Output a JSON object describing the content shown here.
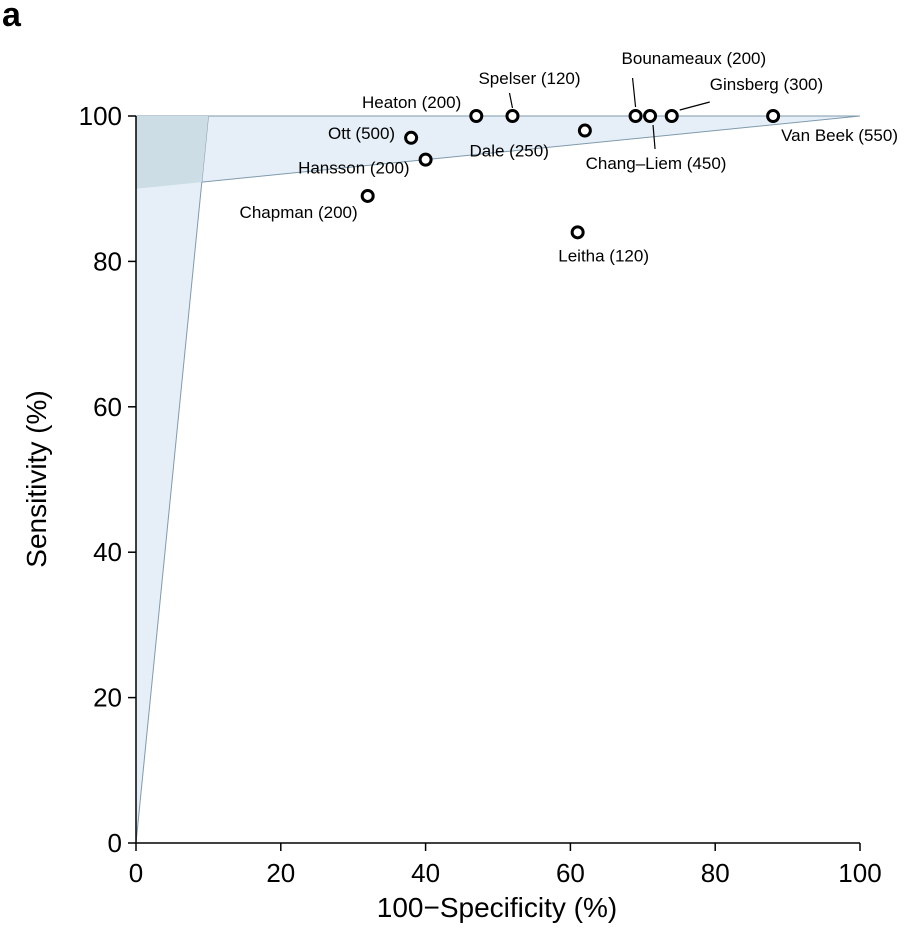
{
  "panel_label": "a",
  "chart_data": {
    "type": "scatter",
    "title": "",
    "xlabel": "100−Specificity (%)",
    "ylabel": "Sensitivity (%)",
    "xlim": [
      0,
      100
    ],
    "ylim": [
      0,
      100
    ],
    "xticks": [
      0,
      20,
      40,
      60,
      80,
      100
    ],
    "yticks": [
      0,
      20,
      40,
      60,
      80,
      100
    ],
    "grid": false,
    "colors": {
      "region_fill": "#e6eff7",
      "overlap_fill": "#cddde5",
      "region_line": "#7f9aae",
      "axis": "#000000"
    },
    "regions": [
      {
        "name": "sensitivity-region",
        "polygon": [
          [
            0,
            90
          ],
          [
            100,
            100
          ],
          [
            0,
            100
          ]
        ]
      },
      {
        "name": "specificity-region",
        "polygon": [
          [
            0,
            0
          ],
          [
            10,
            100
          ],
          [
            0,
            100
          ]
        ]
      }
    ],
    "points": [
      {
        "label": "Van Beek (550)",
        "x": 88,
        "y": 100
      },
      {
        "label": "Ginsberg (300)",
        "x": 74,
        "y": 100
      },
      {
        "label": "Chang–Liem (450)",
        "x": 71,
        "y": 100
      },
      {
        "label": "Bounameaux (200)",
        "x": 69,
        "y": 100
      },
      {
        "label": "Spelser (120)",
        "x": 52,
        "y": 100
      },
      {
        "label": "Heaton (200)",
        "x": 47,
        "y": 100
      },
      {
        "label": "Dale (250)",
        "x": 62,
        "y": 98
      },
      {
        "label": "Ott (500)",
        "x": 38,
        "y": 97
      },
      {
        "label": "Hansson (200)",
        "x": 40,
        "y": 94
      },
      {
        "label": "Chapman (200)",
        "x": 32,
        "y": 89
      },
      {
        "label": "Leitha (120)",
        "x": 61,
        "y": 84
      }
    ]
  }
}
